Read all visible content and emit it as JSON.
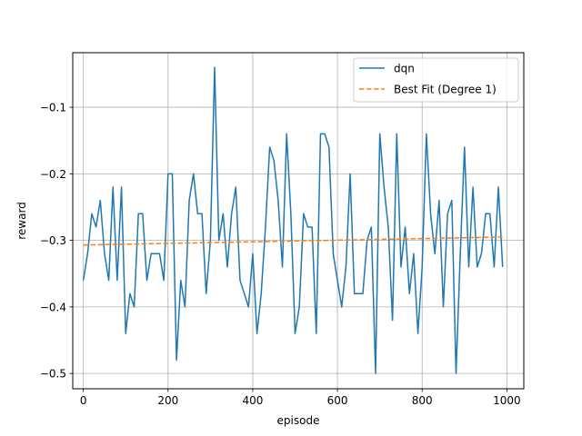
{
  "chart_data": {
    "type": "line",
    "title": "",
    "xlabel": "episode",
    "ylabel": "reward",
    "xlim": [
      -25,
      1040
    ],
    "ylim": [
      -0.523,
      -0.018
    ],
    "grid": true,
    "legend_position": "top-right",
    "x_ticks": [
      0,
      200,
      400,
      600,
      800,
      1000
    ],
    "x_tick_labels": [
      "0",
      "200",
      "400",
      "600",
      "800",
      "1000"
    ],
    "y_ticks": [
      -0.5,
      -0.4,
      -0.3,
      -0.2,
      -0.1
    ],
    "y_tick_labels": [
      "−0.5",
      "−0.4",
      "−0.3",
      "−0.2",
      "−0.1"
    ],
    "series": [
      {
        "name": "dqn",
        "color": "#1f77b4",
        "style": "solid",
        "x": [
          0,
          10,
          20,
          30,
          40,
          50,
          60,
          70,
          80,
          90,
          100,
          110,
          120,
          130,
          140,
          150,
          160,
          170,
          180,
          190,
          200,
          210,
          220,
          230,
          240,
          250,
          260,
          270,
          280,
          290,
          300,
          310,
          320,
          330,
          340,
          350,
          360,
          370,
          380,
          390,
          400,
          410,
          420,
          430,
          440,
          450,
          460,
          470,
          480,
          490,
          500,
          510,
          520,
          530,
          540,
          550,
          560,
          570,
          580,
          590,
          600,
          610,
          620,
          630,
          640,
          650,
          660,
          670,
          680,
          690,
          700,
          710,
          720,
          730,
          740,
          750,
          760,
          770,
          780,
          790,
          800,
          810,
          820,
          830,
          840,
          850,
          860,
          870,
          880,
          890,
          900,
          910,
          920,
          930,
          940,
          950,
          960,
          970,
          980,
          990
        ],
        "values": [
          -0.36,
          -0.32,
          -0.26,
          -0.28,
          -0.24,
          -0.32,
          -0.36,
          -0.22,
          -0.36,
          -0.22,
          -0.44,
          -0.38,
          -0.4,
          -0.26,
          -0.26,
          -0.36,
          -0.32,
          -0.32,
          -0.32,
          -0.36,
          -0.2,
          -0.2,
          -0.48,
          -0.36,
          -0.4,
          -0.24,
          -0.2,
          -0.26,
          -0.26,
          -0.38,
          -0.3,
          -0.04,
          -0.3,
          -0.26,
          -0.34,
          -0.26,
          -0.22,
          -0.36,
          -0.38,
          -0.4,
          -0.32,
          -0.44,
          -0.38,
          -0.28,
          -0.16,
          -0.18,
          -0.24,
          -0.34,
          -0.14,
          -0.26,
          -0.44,
          -0.4,
          -0.26,
          -0.28,
          -0.28,
          -0.44,
          -0.14,
          -0.14,
          -0.16,
          -0.32,
          -0.36,
          -0.4,
          -0.34,
          -0.2,
          -0.38,
          -0.38,
          -0.38,
          -0.3,
          -0.28,
          -0.5,
          -0.14,
          -0.22,
          -0.28,
          -0.42,
          -0.14,
          -0.34,
          -0.28,
          -0.38,
          -0.32,
          -0.44,
          -0.34,
          -0.14,
          -0.26,
          -0.32,
          -0.24,
          -0.4,
          -0.26,
          -0.24,
          -0.5,
          -0.32,
          -0.16,
          -0.34,
          -0.22,
          -0.34,
          -0.32,
          -0.26,
          -0.26,
          -0.34,
          -0.22,
          -0.34
        ]
      },
      {
        "name": "Best Fit (Degree 1)",
        "color": "#ff7f0e",
        "style": "dashed",
        "x": [
          0,
          990
        ],
        "values": [
          -0.307,
          -0.295
        ]
      }
    ]
  }
}
